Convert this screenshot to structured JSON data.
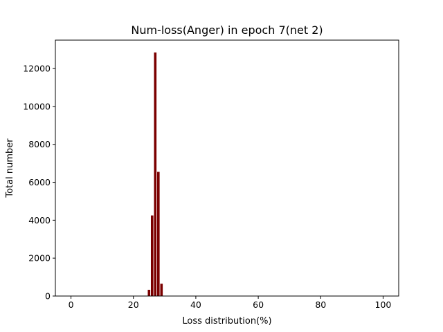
{
  "chart_data": {
    "type": "bar",
    "title": "Num-loss(Anger) in epoch 7(net 2)",
    "xlabel": "Loss distribution(%)",
    "ylabel": "Total number",
    "xlim": [
      -5,
      105
    ],
    "ylim": [
      0,
      13500
    ],
    "xticks": [
      0,
      20,
      40,
      60,
      80,
      100
    ],
    "yticks": [
      0,
      2000,
      4000,
      6000,
      8000,
      10000,
      12000
    ],
    "bar_width": 0.8,
    "bar_color": "#7b0000",
    "x": [
      25,
      26,
      27,
      28,
      29
    ],
    "values": [
      330,
      4250,
      12850,
      6550,
      650
    ]
  }
}
